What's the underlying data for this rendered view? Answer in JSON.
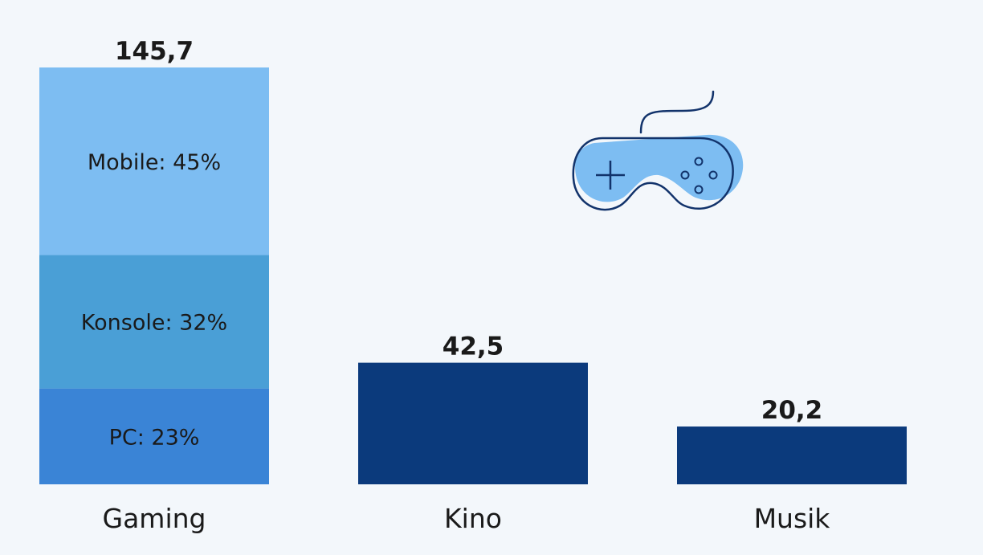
{
  "chart_data": {
    "type": "bar",
    "stacked_first_bar": true,
    "categories": [
      "Gaming",
      "Kino",
      "Musik"
    ],
    "values": [
      145.7,
      42.5,
      20.2
    ],
    "value_labels": [
      "145,7",
      "42,5",
      "20,2"
    ],
    "ylim": [
      0,
      145.7
    ],
    "grid": false,
    "gaming_breakdown": [
      {
        "label": "PC: 23%",
        "share": 23
      },
      {
        "label": "Konsole: 32%",
        "share": 32
      },
      {
        "label": "Mobile: 45%",
        "share": 45
      }
    ],
    "colors": {
      "background": "#f3f7fb",
      "single_bars": "#0b3a7c",
      "pc": "#3a84d6",
      "konsole": "#4a9fd6",
      "mobile": "#7dbdf2",
      "icon_fill": "#7dbdf2",
      "icon_stroke": "#12336b"
    }
  },
  "icon": {
    "name": "gamepad-icon"
  }
}
